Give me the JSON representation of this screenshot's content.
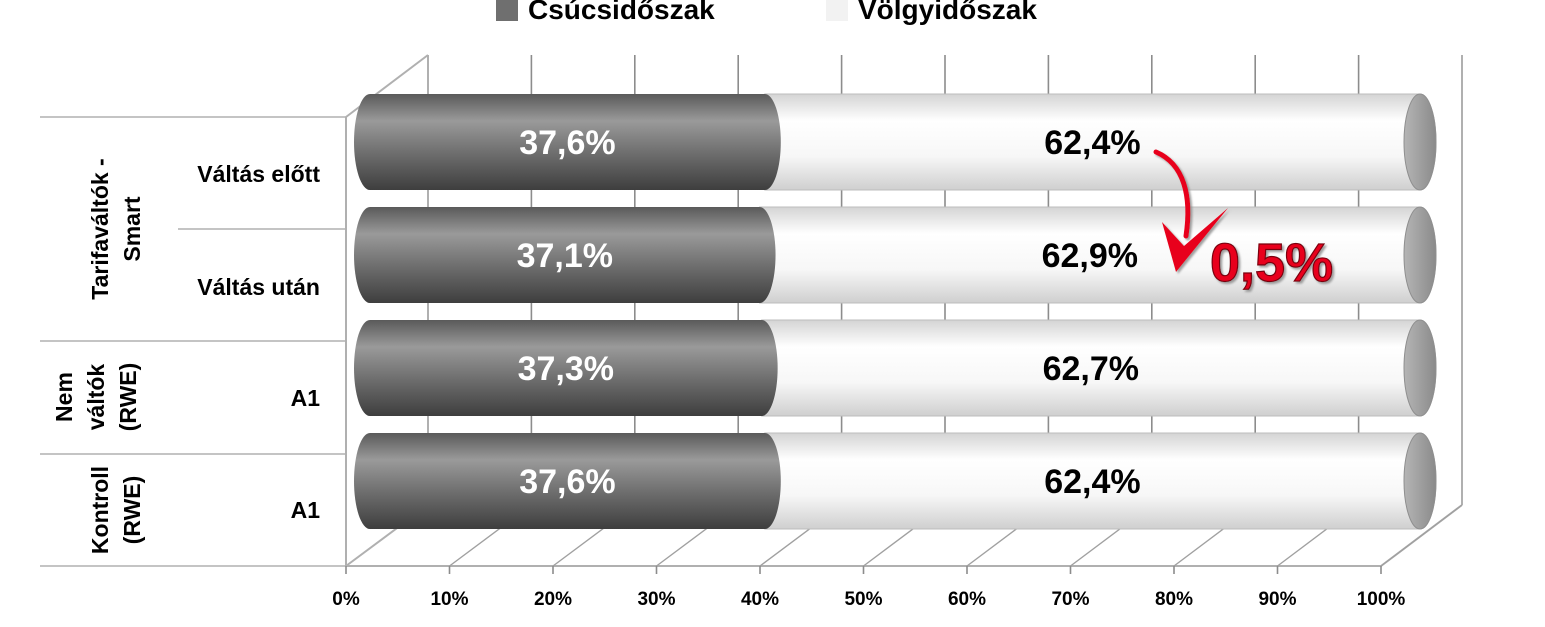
{
  "chart_data": {
    "type": "bar",
    "orientation": "horizontal",
    "stacked": "percent",
    "style": "3d-cylinder",
    "categories": [
      "Váltás előtt",
      "Váltás után",
      "A1",
      "A1"
    ],
    "groups": [
      {
        "label": "Tarifaváltók - Smart",
        "lines": [
          "Tarifaváltók -",
          "Smart"
        ],
        "categories": [
          "Váltás előtt",
          "Váltás után"
        ]
      },
      {
        "label": "Nem váltók (RWE)",
        "lines": [
          "Nem",
          "váltók",
          "(RWE)"
        ],
        "categories": [
          "A1"
        ]
      },
      {
        "label": "Kontroll (RWE)",
        "lines": [
          "Kontroll",
          "(RWE)"
        ],
        "categories": [
          "A1"
        ]
      }
    ],
    "series": [
      {
        "name": "Csúcsidőszak",
        "color": "#6f6f6f",
        "values": [
          37.6,
          37.1,
          37.3,
          37.6
        ],
        "labels": [
          "37,6%",
          "37,1%",
          "37,3%",
          "37,6%"
        ]
      },
      {
        "name": "Völgyidőszak",
        "color": "#f2f2f2",
        "values": [
          62.4,
          62.9,
          62.7,
          62.4
        ],
        "labels": [
          "62,4%",
          "62,9%",
          "62,7%",
          "62,4%"
        ]
      }
    ],
    "xlim": [
      0,
      100
    ],
    "xticks": [
      "0%",
      "10%",
      "20%",
      "30%",
      "40%",
      "50%",
      "60%",
      "70%",
      "80%",
      "90%",
      "100%"
    ],
    "grid": true,
    "legend": "top",
    "annotation": {
      "text": "0,5%",
      "color": "#e8001c",
      "arrow": "down"
    }
  }
}
